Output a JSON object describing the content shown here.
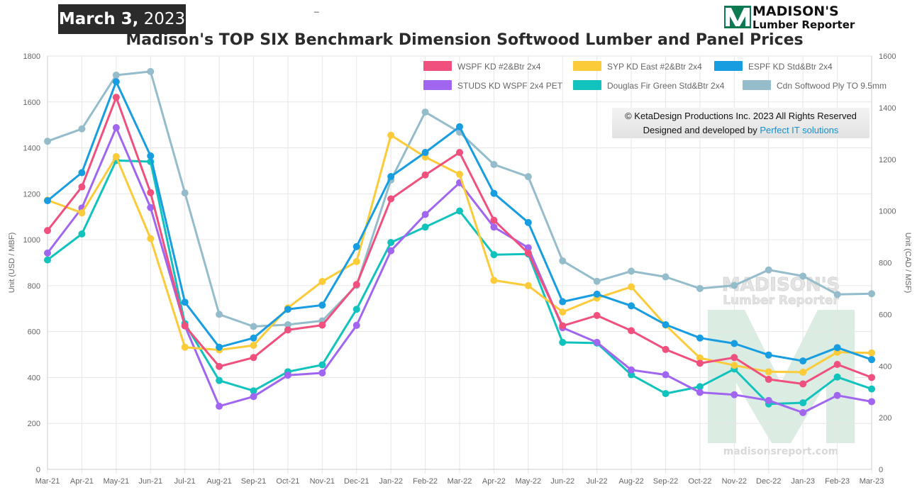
{
  "header": {
    "date_bold": "March 3,",
    "date_year": "2023",
    "dash": "_",
    "logo_line1": "MADISON'S",
    "logo_line2": "Lumber Reporter"
  },
  "copyright": {
    "line1": "© KetaDesign Productions Inc. 2023 All Rights Reserved",
    "line2_prefix": "Designed and developed by ",
    "line2_link": "Perfect IT solutions"
  },
  "watermark": {
    "line1": "MADISON'S",
    "line2": "Lumber Reporter",
    "url": "madisonsreport.com"
  },
  "colors": {
    "grid": "#e6e6e6",
    "axis_text": "#666666",
    "watermark": "#cfe5d8"
  },
  "chart_data": {
    "type": "line",
    "title": "Madison's TOP SIX Benchmark Dimension Softwood Lumber and Panel Prices",
    "xlabel": "",
    "ylabel_left": "Unit (USD / MBF)",
    "ylabel_right": "Unit (CAD / MSF)",
    "ylim_left": [
      0,
      1800
    ],
    "ylim_right": [
      0,
      1600
    ],
    "yticks_left": [
      "0",
      "200",
      "400",
      "600",
      "800",
      "1000",
      "1200",
      "1400",
      "1600",
      "1800"
    ],
    "yticks_right": [
      "0",
      "200",
      "400",
      "600",
      "800",
      "1000",
      "1200",
      "1400",
      "1600"
    ],
    "grid": true,
    "legend_position": "top-right",
    "categories": [
      "Mar-21",
      "Apr-21",
      "May-21",
      "Jun-21",
      "Jul-21",
      "Aug-21",
      "Sep-21",
      "Oct-21",
      "Nov-21",
      "Dec-21",
      "Jan-22",
      "Feb-22",
      "Mar-22",
      "Apr-22",
      "May-22",
      "Jun-22",
      "Jul-22",
      "Aug-22",
      "Sep-22",
      "Oct-22",
      "Nov-22",
      "Dec-22",
      "Jan-23",
      "Feb-23",
      "Mar-23"
    ],
    "series": [
      {
        "name": "WSPF KD #2&Btr 2x4",
        "color": "#f0507d",
        "axis": "left",
        "values": [
          1040,
          1230,
          1620,
          1205,
          625,
          448,
          487,
          607,
          628,
          805,
          1178,
          1282,
          1380,
          1085,
          942,
          625,
          670,
          604,
          522,
          462,
          487,
          392,
          372,
          457,
          400
        ]
      },
      {
        "name": "SYP KD East #2&Btr 2x4",
        "color": "#fbcb3a",
        "axis": "left",
        "values": [
          1172,
          1117,
          1362,
          1005,
          532,
          520,
          540,
          703,
          818,
          905,
          1455,
          1360,
          1285,
          823,
          800,
          685,
          746,
          795,
          628,
          485,
          453,
          425,
          423,
          510,
          507
        ]
      },
      {
        "name": "ESPF KD Std&Btr 2x4",
        "color": "#179de0",
        "axis": "left",
        "values": [
          1170,
          1292,
          1688,
          1365,
          728,
          532,
          572,
          697,
          715,
          970,
          1275,
          1380,
          1492,
          1202,
          1075,
          730,
          763,
          712,
          630,
          572,
          548,
          498,
          472,
          530,
          478
        ]
      },
      {
        "name": "STUDS KD WSPF 2x4 PET",
        "color": "#a066f0",
        "axis": "left",
        "values": [
          942,
          1138,
          1488,
          1140,
          625,
          275,
          317,
          410,
          420,
          627,
          952,
          1110,
          1248,
          1055,
          965,
          617,
          553,
          433,
          412,
          335,
          325,
          300,
          247,
          322,
          295
        ]
      },
      {
        "name": "Douglas Fir Green Std&Btr 2x4",
        "color": "#12c3bd",
        "axis": "left",
        "values": [
          912,
          1025,
          1345,
          1340,
          635,
          387,
          342,
          425,
          455,
          697,
          988,
          1055,
          1125,
          935,
          938,
          553,
          550,
          412,
          330,
          360,
          437,
          285,
          290,
          402,
          350
        ]
      },
      {
        "name": "Cdn Softwood Ply TO 9.5mm",
        "color": "#94bccb",
        "axis": "right",
        "values": [
          1270,
          1318,
          1526,
          1540,
          1070,
          600,
          553,
          560,
          575,
          712,
          1120,
          1383,
          1305,
          1180,
          1133,
          807,
          728,
          767,
          745,
          700,
          712,
          772,
          748,
          677,
          680
        ]
      }
    ]
  }
}
